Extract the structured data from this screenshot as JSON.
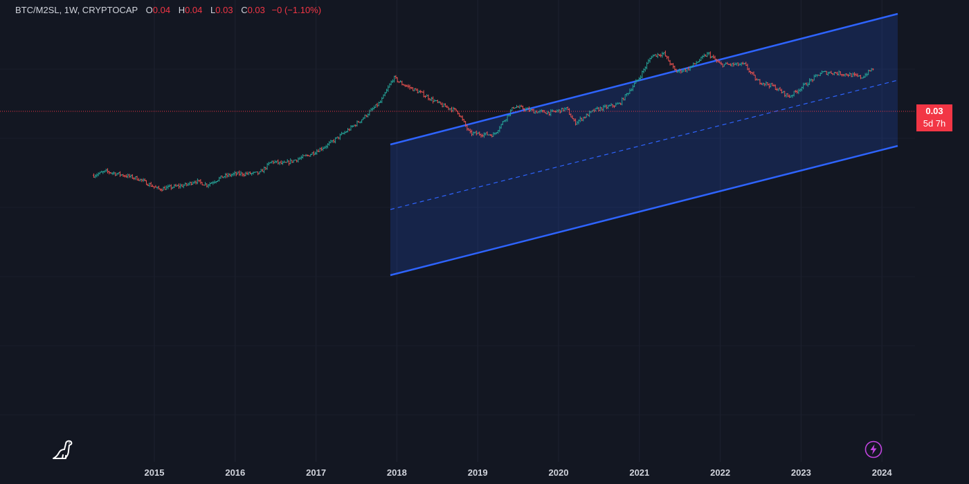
{
  "header": {
    "symbol": "BTC/M2SL, 1W, CRYPTOCAP",
    "open_label": "O",
    "open": "0.04",
    "high_label": "H",
    "high": "0.04",
    "low_label": "L",
    "low": "0.03",
    "close_label": "C",
    "close": "0.03",
    "change": "−0 (−1.10%)"
  },
  "price_tag": {
    "price": "0.03",
    "countdown": "5d 7h"
  },
  "icons": {
    "logo": "tradingview-dinosaur-icon",
    "alert": "lightning-bolt-icon"
  },
  "colors": {
    "background": "#131722",
    "up": "#26a69a",
    "down": "#ef5350",
    "channel": "#2962ff",
    "price_line": "#f23645"
  },
  "chart_data": {
    "type": "bar",
    "title": "BTC/M2SL, 1W, CRYPTOCAP",
    "interval": "1W",
    "x_ticks": [
      "2015",
      "2016",
      "2017",
      "2018",
      "2019",
      "2020",
      "2021",
      "2022",
      "2023",
      "2024"
    ],
    "last_price": 0.03,
    "grid": true,
    "series": [
      {
        "keypoints": [
          [
            2014.25,
            0.0062
          ],
          [
            2014.4,
            0.0068
          ],
          [
            2014.55,
            0.0064
          ],
          [
            2014.8,
            0.0057
          ],
          [
            2015.05,
            0.0044
          ],
          [
            2015.4,
            0.0049
          ],
          [
            2015.5,
            0.0054
          ],
          [
            2015.65,
            0.0049
          ],
          [
            2015.85,
            0.006
          ],
          [
            2016.0,
            0.0064
          ],
          [
            2016.3,
            0.0065
          ],
          [
            2016.45,
            0.0087
          ],
          [
            2016.6,
            0.0082
          ],
          [
            2016.9,
            0.0101
          ],
          [
            2017.15,
            0.0132
          ],
          [
            2017.4,
            0.019
          ],
          [
            2017.55,
            0.024
          ],
          [
            2017.8,
            0.038
          ],
          [
            2017.96,
            0.069
          ],
          [
            2018.05,
            0.06
          ],
          [
            2018.3,
            0.047
          ],
          [
            2018.55,
            0.035
          ],
          [
            2018.75,
            0.03
          ],
          [
            2018.9,
            0.0175
          ],
          [
            2019.2,
            0.0168
          ],
          [
            2019.45,
            0.034
          ],
          [
            2019.7,
            0.03
          ],
          [
            2019.9,
            0.029
          ],
          [
            2020.1,
            0.032
          ],
          [
            2020.2,
            0.0225
          ],
          [
            2020.45,
            0.031
          ],
          [
            2020.75,
            0.036
          ],
          [
            2021.0,
            0.069
          ],
          [
            2021.15,
            0.118
          ],
          [
            2021.3,
            0.125
          ],
          [
            2021.45,
            0.08
          ],
          [
            2021.6,
            0.085
          ],
          [
            2021.85,
            0.125
          ],
          [
            2022.0,
            0.095
          ],
          [
            2022.3,
            0.095
          ],
          [
            2022.45,
            0.064
          ],
          [
            2022.65,
            0.056
          ],
          [
            2022.85,
            0.043
          ],
          [
            2023.05,
            0.058
          ],
          [
            2023.25,
            0.078
          ],
          [
            2023.4,
            0.078
          ],
          [
            2023.6,
            0.074
          ],
          [
            2023.75,
            0.069
          ],
          [
            2023.9,
            0.088
          ]
        ]
      }
    ]
  }
}
